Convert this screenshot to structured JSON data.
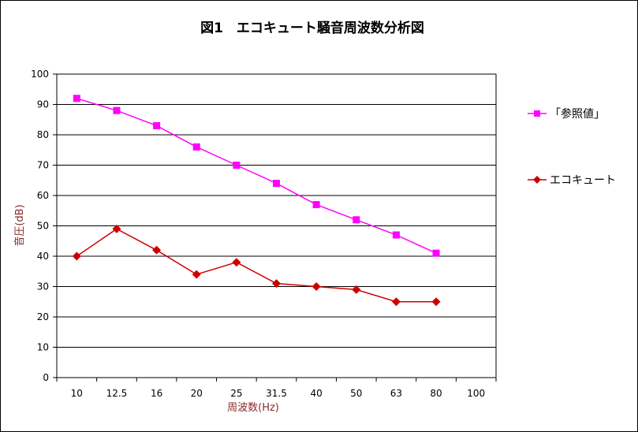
{
  "chart_data": {
    "type": "line",
    "title": "図1　エコキュート騒音周波数分析図",
    "xlabel": "周波数(Hz)",
    "ylabel": "音圧(dB)",
    "categories": [
      "10",
      "12.5",
      "16",
      "20",
      "25",
      "31.5",
      "40",
      "50",
      "63",
      "80",
      "100"
    ],
    "ylim": [
      0,
      100
    ],
    "yticks": [
      "0",
      "10",
      "20",
      "30",
      "40",
      "50",
      "60",
      "70",
      "80",
      "90",
      "100"
    ],
    "grid": true,
    "legend_position": "right",
    "series": [
      {
        "name": "「参照値」",
        "color": "#ff00ff",
        "marker": "square",
        "values": [
          92,
          88,
          83,
          76,
          70,
          64,
          57,
          52,
          47,
          41,
          null
        ]
      },
      {
        "name": "エコキュート",
        "color": "#cc0000",
        "marker": "diamond",
        "values": [
          40,
          49,
          42,
          34,
          38,
          31,
          30,
          29,
          25,
          25,
          null
        ]
      }
    ]
  }
}
